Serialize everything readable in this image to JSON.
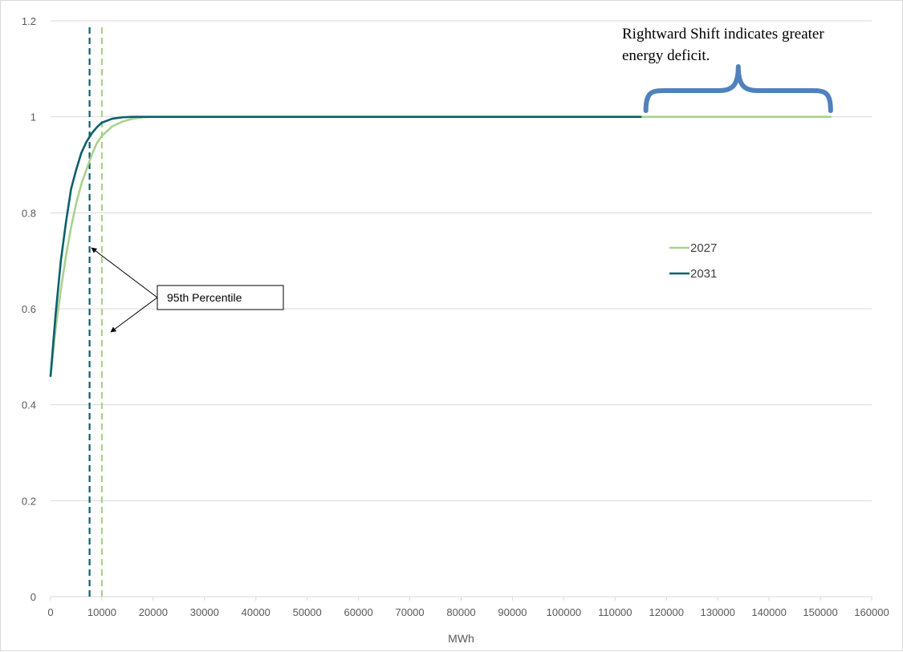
{
  "chart_data": {
    "type": "line",
    "title": "",
    "xlabel": "MWh",
    "ylabel": "",
    "xlim": [
      0,
      160000
    ],
    "ylim": [
      0,
      1.2
    ],
    "x_ticks": [
      0,
      10000,
      20000,
      30000,
      40000,
      50000,
      60000,
      70000,
      80000,
      90000,
      100000,
      110000,
      120000,
      130000,
      140000,
      150000,
      160000
    ],
    "y_ticks": [
      0,
      0.2,
      0.4,
      0.6,
      0.8,
      1,
      1.2
    ],
    "y_tick_labels": [
      "0",
      "0.2",
      "0.4",
      "0.6",
      "0.8",
      "1",
      "1.2"
    ],
    "grid": "horizontal",
    "legend_position": "right",
    "series": [
      {
        "name": "2027",
        "color": "#a9d18e",
        "x": [
          0,
          1000,
          2000,
          3000,
          4000,
          5000,
          6000,
          7000,
          8000,
          9000,
          10000,
          12000,
          14000,
          16000,
          18000,
          20000,
          152000
        ],
        "y": [
          0.46,
          0.56,
          0.64,
          0.71,
          0.77,
          0.82,
          0.86,
          0.89,
          0.92,
          0.945,
          0.96,
          0.98,
          0.99,
          0.996,
          0.999,
          1.0,
          1.0
        ]
      },
      {
        "name": "2031",
        "color": "#0b5f6b",
        "x": [
          0,
          1000,
          2000,
          3000,
          4000,
          5000,
          6000,
          7000,
          8000,
          9000,
          10000,
          12000,
          14000,
          16000,
          18000,
          115000
        ],
        "y": [
          0.46,
          0.59,
          0.7,
          0.78,
          0.85,
          0.89,
          0.925,
          0.948,
          0.965,
          0.978,
          0.988,
          0.996,
          0.999,
          1.0,
          1.0,
          1.0
        ]
      }
    ],
    "reference_lines": [
      {
        "series": "2027",
        "x": 10000,
        "color": "#a9d18e",
        "style": "dashed"
      },
      {
        "series": "2031",
        "x": 7600,
        "color": "#0b5f6b",
        "style": "dashed"
      }
    ],
    "annotations": {
      "percentile_label": "95th Percentile",
      "shift_note_line1": "Rightward Shift indicates greater",
      "shift_note_line2": "energy deficit.",
      "brace_range": [
        116000,
        152000
      ],
      "brace_color": "#4f81bd"
    }
  }
}
